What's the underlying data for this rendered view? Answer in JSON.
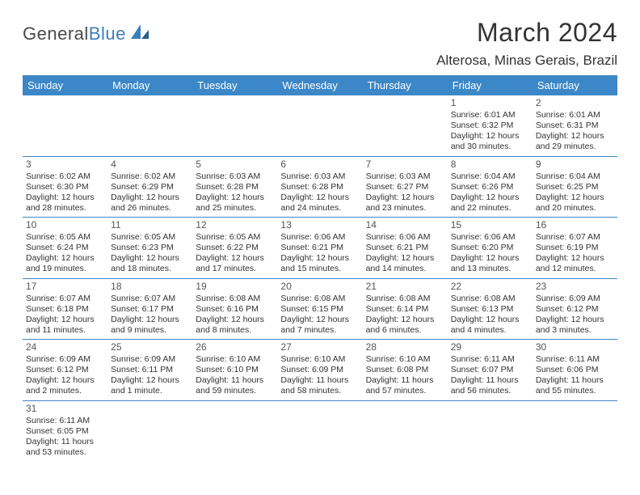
{
  "logo": {
    "part1": "General",
    "part2": "Blue"
  },
  "title": "March 2024",
  "location": "Alterosa, Minas Gerais, Brazil",
  "colors": {
    "header_bar": "#3c87c7",
    "accent": "#3a7fb8",
    "text": "#333333",
    "logo_gray": "#4a4a4a",
    "bg": "#ffffff"
  },
  "day_names": [
    "Sunday",
    "Monday",
    "Tuesday",
    "Wednesday",
    "Thursday",
    "Friday",
    "Saturday"
  ],
  "weeks": [
    [
      {
        "empty": true
      },
      {
        "empty": true
      },
      {
        "empty": true
      },
      {
        "empty": true
      },
      {
        "empty": true
      },
      {
        "day": "1",
        "sunrise": "Sunrise: 6:01 AM",
        "sunset": "Sunset: 6:32 PM",
        "dl1": "Daylight: 12 hours",
        "dl2": "and 30 minutes."
      },
      {
        "day": "2",
        "sunrise": "Sunrise: 6:01 AM",
        "sunset": "Sunset: 6:31 PM",
        "dl1": "Daylight: 12 hours",
        "dl2": "and 29 minutes."
      }
    ],
    [
      {
        "day": "3",
        "sunrise": "Sunrise: 6:02 AM",
        "sunset": "Sunset: 6:30 PM",
        "dl1": "Daylight: 12 hours",
        "dl2": "and 28 minutes."
      },
      {
        "day": "4",
        "sunrise": "Sunrise: 6:02 AM",
        "sunset": "Sunset: 6:29 PM",
        "dl1": "Daylight: 12 hours",
        "dl2": "and 26 minutes."
      },
      {
        "day": "5",
        "sunrise": "Sunrise: 6:03 AM",
        "sunset": "Sunset: 6:28 PM",
        "dl1": "Daylight: 12 hours",
        "dl2": "and 25 minutes."
      },
      {
        "day": "6",
        "sunrise": "Sunrise: 6:03 AM",
        "sunset": "Sunset: 6:28 PM",
        "dl1": "Daylight: 12 hours",
        "dl2": "and 24 minutes."
      },
      {
        "day": "7",
        "sunrise": "Sunrise: 6:03 AM",
        "sunset": "Sunset: 6:27 PM",
        "dl1": "Daylight: 12 hours",
        "dl2": "and 23 minutes."
      },
      {
        "day": "8",
        "sunrise": "Sunrise: 6:04 AM",
        "sunset": "Sunset: 6:26 PM",
        "dl1": "Daylight: 12 hours",
        "dl2": "and 22 minutes."
      },
      {
        "day": "9",
        "sunrise": "Sunrise: 6:04 AM",
        "sunset": "Sunset: 6:25 PM",
        "dl1": "Daylight: 12 hours",
        "dl2": "and 20 minutes."
      }
    ],
    [
      {
        "day": "10",
        "sunrise": "Sunrise: 6:05 AM",
        "sunset": "Sunset: 6:24 PM",
        "dl1": "Daylight: 12 hours",
        "dl2": "and 19 minutes."
      },
      {
        "day": "11",
        "sunrise": "Sunrise: 6:05 AM",
        "sunset": "Sunset: 6:23 PM",
        "dl1": "Daylight: 12 hours",
        "dl2": "and 18 minutes."
      },
      {
        "day": "12",
        "sunrise": "Sunrise: 6:05 AM",
        "sunset": "Sunset: 6:22 PM",
        "dl1": "Daylight: 12 hours",
        "dl2": "and 17 minutes."
      },
      {
        "day": "13",
        "sunrise": "Sunrise: 6:06 AM",
        "sunset": "Sunset: 6:21 PM",
        "dl1": "Daylight: 12 hours",
        "dl2": "and 15 minutes."
      },
      {
        "day": "14",
        "sunrise": "Sunrise: 6:06 AM",
        "sunset": "Sunset: 6:21 PM",
        "dl1": "Daylight: 12 hours",
        "dl2": "and 14 minutes."
      },
      {
        "day": "15",
        "sunrise": "Sunrise: 6:06 AM",
        "sunset": "Sunset: 6:20 PM",
        "dl1": "Daylight: 12 hours",
        "dl2": "and 13 minutes."
      },
      {
        "day": "16",
        "sunrise": "Sunrise: 6:07 AM",
        "sunset": "Sunset: 6:19 PM",
        "dl1": "Daylight: 12 hours",
        "dl2": "and 12 minutes."
      }
    ],
    [
      {
        "day": "17",
        "sunrise": "Sunrise: 6:07 AM",
        "sunset": "Sunset: 6:18 PM",
        "dl1": "Daylight: 12 hours",
        "dl2": "and 11 minutes."
      },
      {
        "day": "18",
        "sunrise": "Sunrise: 6:07 AM",
        "sunset": "Sunset: 6:17 PM",
        "dl1": "Daylight: 12 hours",
        "dl2": "and 9 minutes."
      },
      {
        "day": "19",
        "sunrise": "Sunrise: 6:08 AM",
        "sunset": "Sunset: 6:16 PM",
        "dl1": "Daylight: 12 hours",
        "dl2": "and 8 minutes."
      },
      {
        "day": "20",
        "sunrise": "Sunrise: 6:08 AM",
        "sunset": "Sunset: 6:15 PM",
        "dl1": "Daylight: 12 hours",
        "dl2": "and 7 minutes."
      },
      {
        "day": "21",
        "sunrise": "Sunrise: 6:08 AM",
        "sunset": "Sunset: 6:14 PM",
        "dl1": "Daylight: 12 hours",
        "dl2": "and 6 minutes."
      },
      {
        "day": "22",
        "sunrise": "Sunrise: 6:08 AM",
        "sunset": "Sunset: 6:13 PM",
        "dl1": "Daylight: 12 hours",
        "dl2": "and 4 minutes."
      },
      {
        "day": "23",
        "sunrise": "Sunrise: 6:09 AM",
        "sunset": "Sunset: 6:12 PM",
        "dl1": "Daylight: 12 hours",
        "dl2": "and 3 minutes."
      }
    ],
    [
      {
        "day": "24",
        "sunrise": "Sunrise: 6:09 AM",
        "sunset": "Sunset: 6:12 PM",
        "dl1": "Daylight: 12 hours",
        "dl2": "and 2 minutes."
      },
      {
        "day": "25",
        "sunrise": "Sunrise: 6:09 AM",
        "sunset": "Sunset: 6:11 PM",
        "dl1": "Daylight: 12 hours",
        "dl2": "and 1 minute."
      },
      {
        "day": "26",
        "sunrise": "Sunrise: 6:10 AM",
        "sunset": "Sunset: 6:10 PM",
        "dl1": "Daylight: 11 hours",
        "dl2": "and 59 minutes."
      },
      {
        "day": "27",
        "sunrise": "Sunrise: 6:10 AM",
        "sunset": "Sunset: 6:09 PM",
        "dl1": "Daylight: 11 hours",
        "dl2": "and 58 minutes."
      },
      {
        "day": "28",
        "sunrise": "Sunrise: 6:10 AM",
        "sunset": "Sunset: 6:08 PM",
        "dl1": "Daylight: 11 hours",
        "dl2": "and 57 minutes."
      },
      {
        "day": "29",
        "sunrise": "Sunrise: 6:11 AM",
        "sunset": "Sunset: 6:07 PM",
        "dl1": "Daylight: 11 hours",
        "dl2": "and 56 minutes."
      },
      {
        "day": "30",
        "sunrise": "Sunrise: 6:11 AM",
        "sunset": "Sunset: 6:06 PM",
        "dl1": "Daylight: 11 hours",
        "dl2": "and 55 minutes."
      }
    ],
    [
      {
        "day": "31",
        "sunrise": "Sunrise: 6:11 AM",
        "sunset": "Sunset: 6:05 PM",
        "dl1": "Daylight: 11 hours",
        "dl2": "and 53 minutes."
      },
      {
        "empty": true
      },
      {
        "empty": true
      },
      {
        "empty": true
      },
      {
        "empty": true
      },
      {
        "empty": true
      },
      {
        "empty": true
      }
    ]
  ]
}
